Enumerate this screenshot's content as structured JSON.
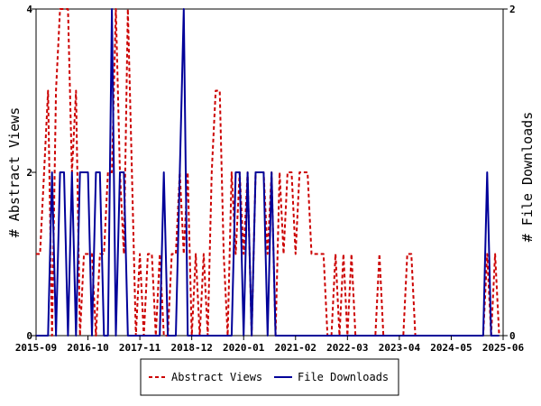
{
  "chart_data": {
    "type": "line",
    "x_ticks": [
      "2015-09",
      "2016-10",
      "2017-11",
      "2018-12",
      "2020-01",
      "2021-02",
      "2022-03",
      "2023-04",
      "2024-05",
      "2025-06"
    ],
    "y_left": {
      "label": "# Abstract Views",
      "ticks": [
        "0",
        "2",
        "4"
      ],
      "range": [
        0,
        4
      ]
    },
    "y_right": {
      "label": "# File Downloads",
      "ticks": [
        "0",
        "2"
      ],
      "range": [
        0,
        2
      ]
    },
    "grid": false,
    "legend_position": "bottom",
    "series": [
      {
        "name": "Abstract Views",
        "axis": "left",
        "color": "#cc0000",
        "dash": "dashed",
        "points": [
          [
            "2015-09",
            1
          ],
          [
            "2015-10",
            1
          ],
          [
            "2015-11",
            2
          ],
          [
            "2015-12",
            3
          ],
          [
            "2016-01",
            0
          ],
          [
            "2016-02",
            3
          ],
          [
            "2016-03",
            4
          ],
          [
            "2016-04",
            4
          ],
          [
            "2016-05",
            4
          ],
          [
            "2016-06",
            2
          ],
          [
            "2016-07",
            3
          ],
          [
            "2016-08",
            0
          ],
          [
            "2016-09",
            1
          ],
          [
            "2016-10",
            1
          ],
          [
            "2016-11",
            1
          ],
          [
            "2016-12",
            0
          ],
          [
            "2017-01",
            1
          ],
          [
            "2017-02",
            1
          ],
          [
            "2017-03",
            2
          ],
          [
            "2017-04",
            2
          ],
          [
            "2017-05",
            4
          ],
          [
            "2017-06",
            2
          ],
          [
            "2017-07",
            1
          ],
          [
            "2017-08",
            4
          ],
          [
            "2017-09",
            2
          ],
          [
            "2017-10",
            0
          ],
          [
            "2017-11",
            1
          ],
          [
            "2017-12",
            0
          ],
          [
            "2018-01",
            1
          ],
          [
            "2018-02",
            1
          ],
          [
            "2018-03",
            0
          ],
          [
            "2018-04",
            1
          ],
          [
            "2018-05",
            0
          ],
          [
            "2018-06",
            0
          ],
          [
            "2018-07",
            1
          ],
          [
            "2018-08",
            1
          ],
          [
            "2018-09",
            2
          ],
          [
            "2018-10",
            1
          ],
          [
            "2018-11",
            2
          ],
          [
            "2018-12",
            0
          ],
          [
            "2019-01",
            1
          ],
          [
            "2019-02",
            0
          ],
          [
            "2019-03",
            1
          ],
          [
            "2019-04",
            0
          ],
          [
            "2019-05",
            2
          ],
          [
            "2019-06",
            3
          ],
          [
            "2019-07",
            3
          ],
          [
            "2019-08",
            1
          ],
          [
            "2019-09",
            0
          ],
          [
            "2019-10",
            2
          ],
          [
            "2019-11",
            1
          ],
          [
            "2019-12",
            2
          ],
          [
            "2020-01",
            1
          ],
          [
            "2020-02",
            2
          ],
          [
            "2020-03",
            0
          ],
          [
            "2020-04",
            2
          ],
          [
            "2020-05",
            2
          ],
          [
            "2020-06",
            2
          ],
          [
            "2020-07",
            1
          ],
          [
            "2020-08",
            2
          ],
          [
            "2020-09",
            0
          ],
          [
            "2020-10",
            2
          ],
          [
            "2020-11",
            1
          ],
          [
            "2020-12",
            2
          ],
          [
            "2021-01",
            2
          ],
          [
            "2021-02",
            1
          ],
          [
            "2021-03",
            2
          ],
          [
            "2021-04",
            2
          ],
          [
            "2021-05",
            2
          ],
          [
            "2021-06",
            1
          ],
          [
            "2021-07",
            1
          ],
          [
            "2021-08",
            1
          ],
          [
            "2021-09",
            1
          ],
          [
            "2021-10",
            0
          ],
          [
            "2021-11",
            0
          ],
          [
            "2021-12",
            1
          ],
          [
            "2022-01",
            0
          ],
          [
            "2022-02",
            1
          ],
          [
            "2022-03",
            0
          ],
          [
            "2022-04",
            1
          ],
          [
            "2022-05",
            0
          ],
          [
            "2022-06",
            0
          ],
          [
            "2022-07",
            0
          ],
          [
            "2022-08",
            0
          ],
          [
            "2022-09",
            0
          ],
          [
            "2022-10",
            0
          ],
          [
            "2022-11",
            1
          ],
          [
            "2022-12",
            0
          ],
          [
            "2023-01",
            0
          ],
          [
            "2023-02",
            0
          ],
          [
            "2023-03",
            0
          ],
          [
            "2023-04",
            0
          ],
          [
            "2023-05",
            0
          ],
          [
            "2023-06",
            1
          ],
          [
            "2023-07",
            1
          ],
          [
            "2023-08",
            0
          ],
          [
            "2023-09",
            0
          ],
          [
            "2023-10",
            0
          ],
          [
            "2023-11",
            0
          ],
          [
            "2023-12",
            0
          ],
          [
            "2024-01",
            0
          ],
          [
            "2024-02",
            0
          ],
          [
            "2024-03",
            0
          ],
          [
            "2024-04",
            0
          ],
          [
            "2024-05",
            0
          ],
          [
            "2024-06",
            0
          ],
          [
            "2024-07",
            0
          ],
          [
            "2024-08",
            0
          ],
          [
            "2024-09",
            0
          ],
          [
            "2024-10",
            0
          ],
          [
            "2024-11",
            0
          ],
          [
            "2024-12",
            0
          ],
          [
            "2025-01",
            0
          ],
          [
            "2025-02",
            1
          ],
          [
            "2025-03",
            0
          ],
          [
            "2025-04",
            1
          ],
          [
            "2025-05",
            0
          ]
        ]
      },
      {
        "name": "File Downloads",
        "axis": "right",
        "color": "#000099",
        "dash": "solid",
        "points": [
          [
            "2015-09",
            0
          ],
          [
            "2015-10",
            0
          ],
          [
            "2015-11",
            0
          ],
          [
            "2015-12",
            0
          ],
          [
            "2016-01",
            1
          ],
          [
            "2016-02",
            0
          ],
          [
            "2016-03",
            1
          ],
          [
            "2016-04",
            1
          ],
          [
            "2016-05",
            0
          ],
          [
            "2016-06",
            1
          ],
          [
            "2016-07",
            0
          ],
          [
            "2016-08",
            1
          ],
          [
            "2016-09",
            1
          ],
          [
            "2016-10",
            1
          ],
          [
            "2016-11",
            0
          ],
          [
            "2016-12",
            1
          ],
          [
            "2017-01",
            1
          ],
          [
            "2017-02",
            0
          ],
          [
            "2017-03",
            0
          ],
          [
            "2017-04",
            2
          ],
          [
            "2017-05",
            0
          ],
          [
            "2017-06",
            1
          ],
          [
            "2017-07",
            1
          ],
          [
            "2017-08",
            0
          ],
          [
            "2017-09",
            0
          ],
          [
            "2017-10",
            0
          ],
          [
            "2017-11",
            0
          ],
          [
            "2017-12",
            0
          ],
          [
            "2018-01",
            0
          ],
          [
            "2018-02",
            0
          ],
          [
            "2018-03",
            0
          ],
          [
            "2018-04",
            0
          ],
          [
            "2018-05",
            1
          ],
          [
            "2018-06",
            0
          ],
          [
            "2018-07",
            0
          ],
          [
            "2018-08",
            0
          ],
          [
            "2018-09",
            1
          ],
          [
            "2018-10",
            2
          ],
          [
            "2018-11",
            0
          ],
          [
            "2018-12",
            0
          ],
          [
            "2019-01",
            0
          ],
          [
            "2019-02",
            0
          ],
          [
            "2019-03",
            0
          ],
          [
            "2019-04",
            0
          ],
          [
            "2019-05",
            0
          ],
          [
            "2019-06",
            0
          ],
          [
            "2019-07",
            0
          ],
          [
            "2019-08",
            0
          ],
          [
            "2019-09",
            0
          ],
          [
            "2019-10",
            0
          ],
          [
            "2019-11",
            1
          ],
          [
            "2019-12",
            1
          ],
          [
            "2020-01",
            0
          ],
          [
            "2020-02",
            1
          ],
          [
            "2020-03",
            0
          ],
          [
            "2020-04",
            1
          ],
          [
            "2020-05",
            1
          ],
          [
            "2020-06",
            1
          ],
          [
            "2020-07",
            0
          ],
          [
            "2020-08",
            1
          ],
          [
            "2020-09",
            0
          ],
          [
            "2020-10",
            0
          ],
          [
            "2020-11",
            0
          ],
          [
            "2020-12",
            0
          ],
          [
            "2021-01",
            0
          ],
          [
            "2021-02",
            0
          ],
          [
            "2021-03",
            0
          ],
          [
            "2021-04",
            0
          ],
          [
            "2021-05",
            0
          ],
          [
            "2021-06",
            0
          ],
          [
            "2021-07",
            0
          ],
          [
            "2021-08",
            0
          ],
          [
            "2021-09",
            0
          ],
          [
            "2021-10",
            0
          ],
          [
            "2021-11",
            0
          ],
          [
            "2021-12",
            0
          ],
          [
            "2022-01",
            0
          ],
          [
            "2022-02",
            0
          ],
          [
            "2022-03",
            0
          ],
          [
            "2022-04",
            0
          ],
          [
            "2022-05",
            0
          ],
          [
            "2022-06",
            0
          ],
          [
            "2022-07",
            0
          ],
          [
            "2022-08",
            0
          ],
          [
            "2022-09",
            0
          ],
          [
            "2022-10",
            0
          ],
          [
            "2022-11",
            0
          ],
          [
            "2022-12",
            0
          ],
          [
            "2023-01",
            0
          ],
          [
            "2023-02",
            0
          ],
          [
            "2023-03",
            0
          ],
          [
            "2023-04",
            0
          ],
          [
            "2023-05",
            0
          ],
          [
            "2023-06",
            0
          ],
          [
            "2023-07",
            0
          ],
          [
            "2023-08",
            0
          ],
          [
            "2023-09",
            0
          ],
          [
            "2023-10",
            0
          ],
          [
            "2023-11",
            0
          ],
          [
            "2023-12",
            0
          ],
          [
            "2024-01",
            0
          ],
          [
            "2024-02",
            0
          ],
          [
            "2024-03",
            0
          ],
          [
            "2024-04",
            0
          ],
          [
            "2024-05",
            0
          ],
          [
            "2024-06",
            0
          ],
          [
            "2024-07",
            0
          ],
          [
            "2024-08",
            0
          ],
          [
            "2024-09",
            0
          ],
          [
            "2024-10",
            0
          ],
          [
            "2024-11",
            0
          ],
          [
            "2024-12",
            0
          ],
          [
            "2025-01",
            0
          ],
          [
            "2025-02",
            1
          ],
          [
            "2025-03",
            0
          ],
          [
            "2025-04",
            0
          ],
          [
            "2025-05",
            0
          ]
        ]
      }
    ]
  }
}
